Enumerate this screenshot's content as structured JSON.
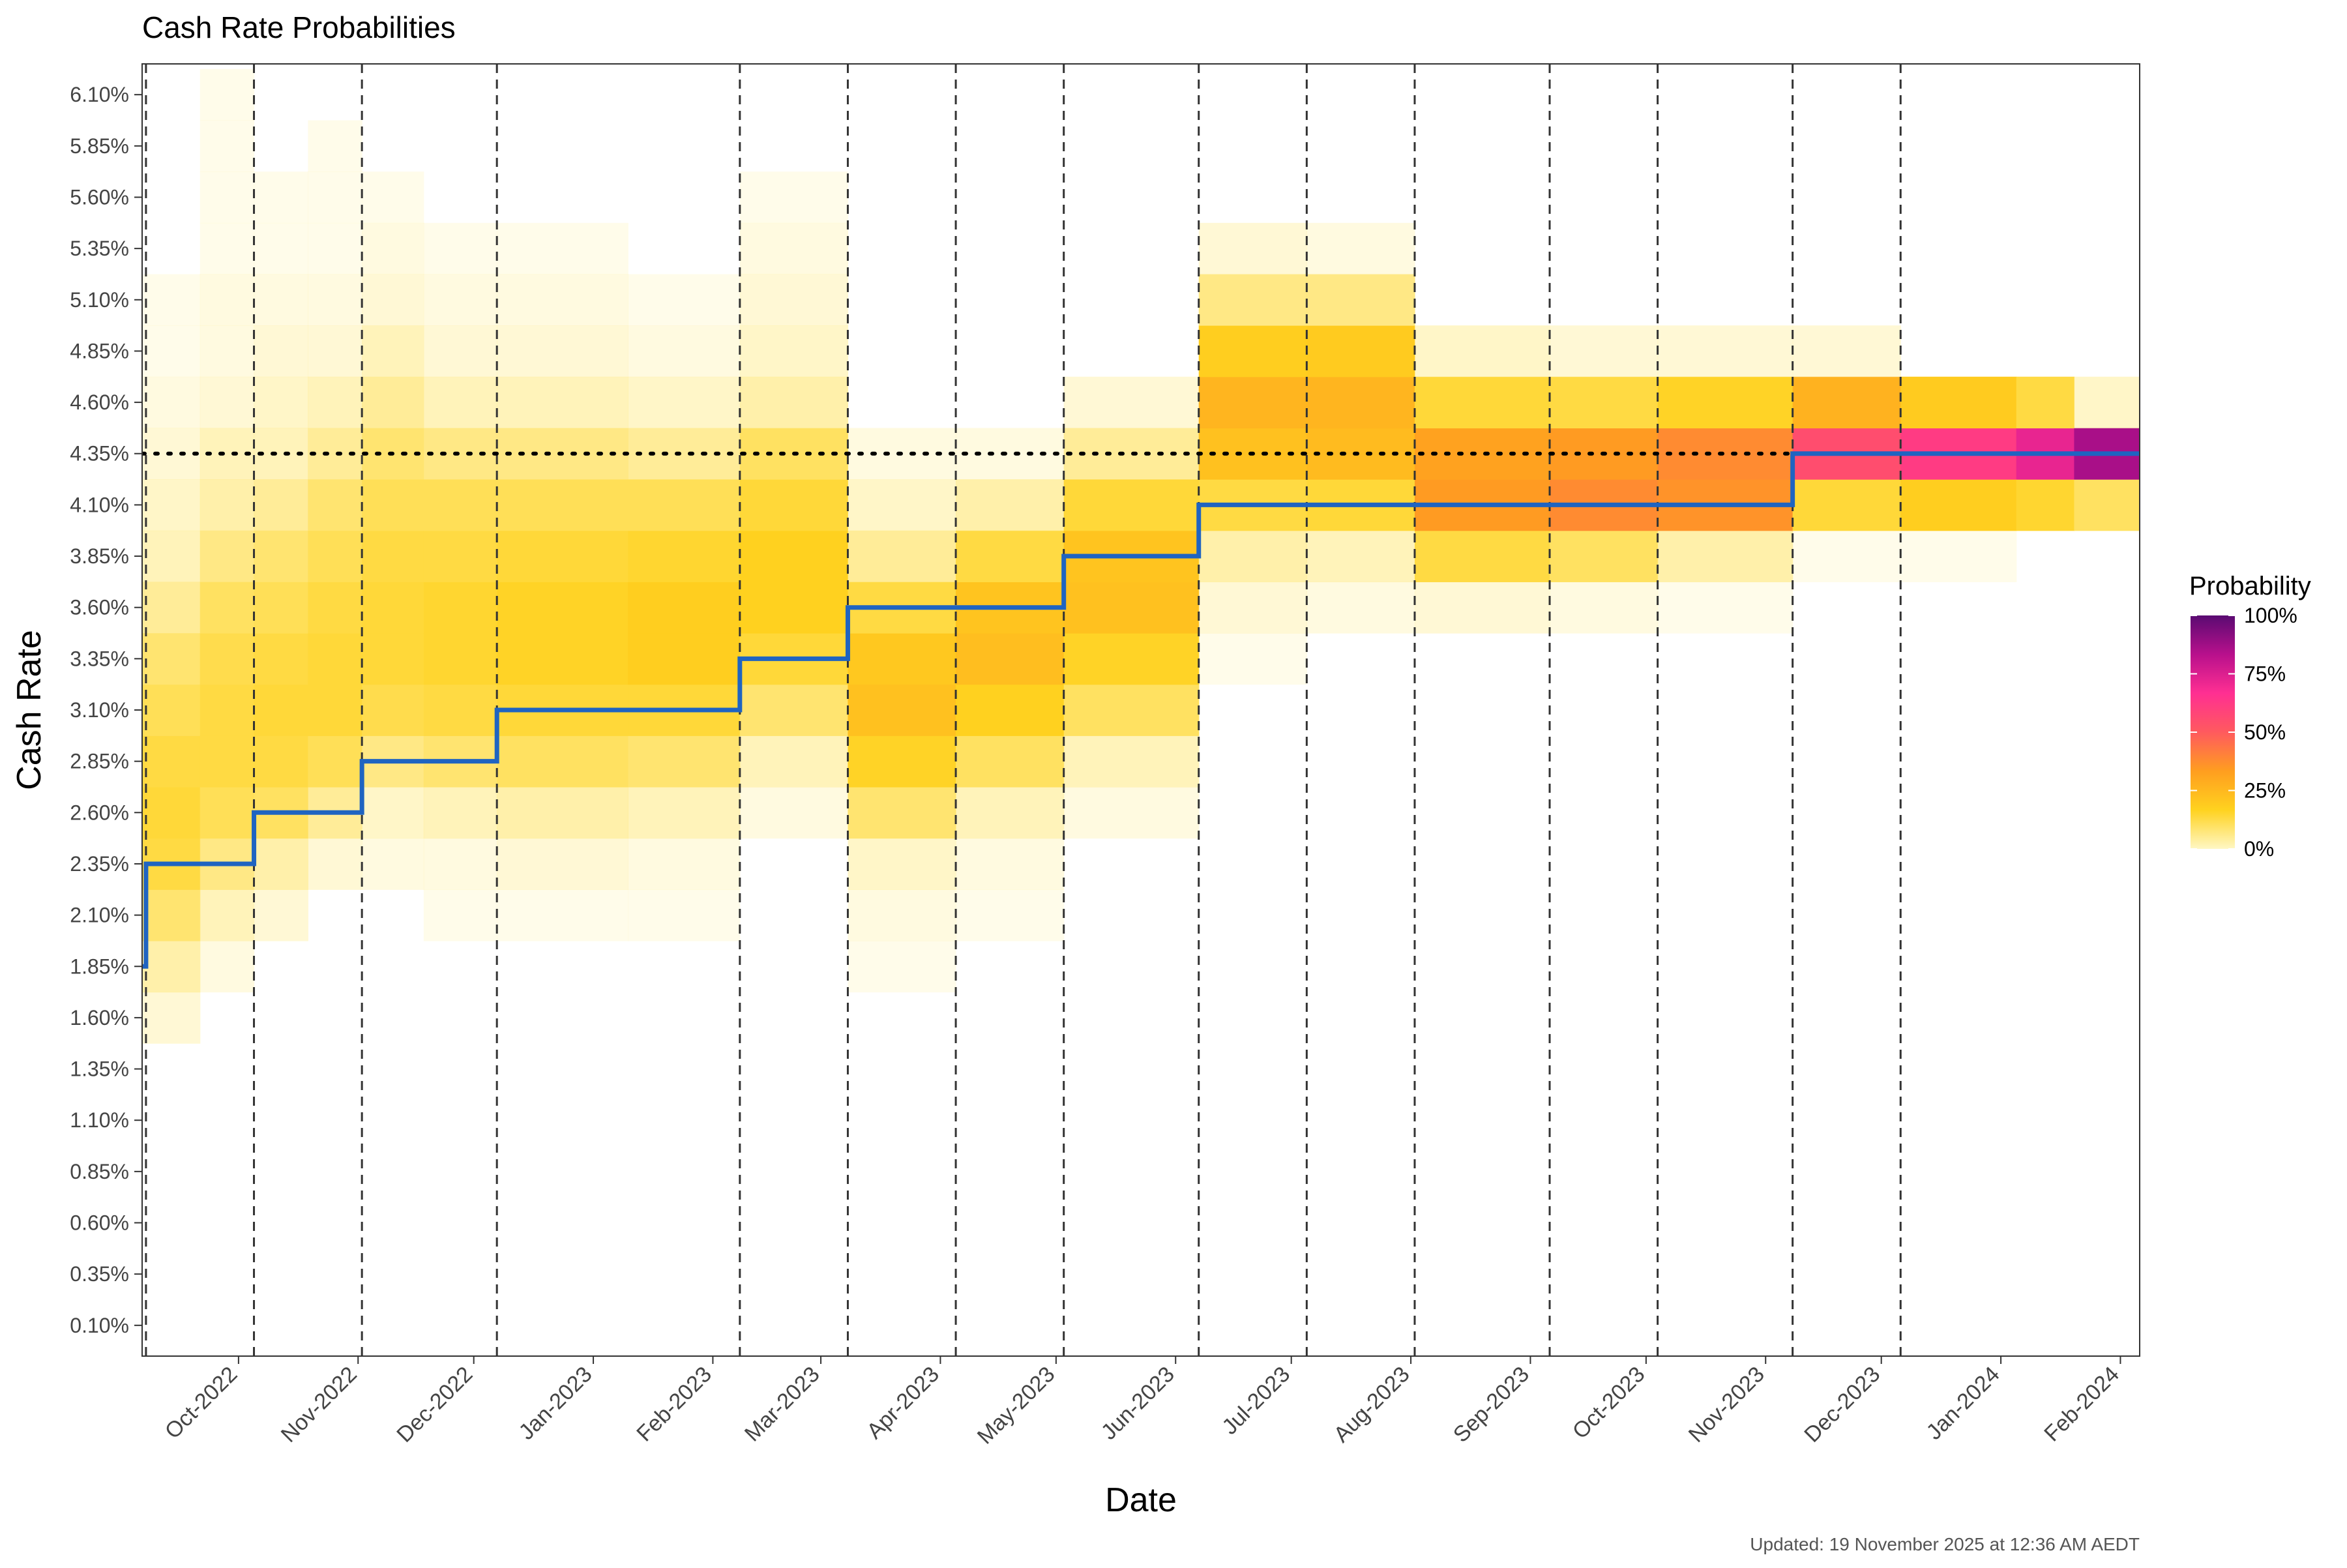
{
  "chart_data": {
    "type": "heatmap",
    "title": "Cash Rate Probabilities",
    "xlabel": "Date",
    "ylabel": "Cash Rate",
    "caption": "Updated: 19 November 2025 at 12:36 AM AEDT",
    "x_range": [
      "2022-09-06",
      "2024-02-06"
    ],
    "x_ticks": [
      {
        "date": "2022-10-01",
        "label": "Oct-2022"
      },
      {
        "date": "2022-11-01",
        "label": "Nov-2022"
      },
      {
        "date": "2022-12-01",
        "label": "Dec-2022"
      },
      {
        "date": "2023-01-01",
        "label": "Jan-2023"
      },
      {
        "date": "2023-02-01",
        "label": "Feb-2023"
      },
      {
        "date": "2023-03-01",
        "label": "Mar-2023"
      },
      {
        "date": "2023-04-01",
        "label": "Apr-2023"
      },
      {
        "date": "2023-05-01",
        "label": "May-2023"
      },
      {
        "date": "2023-06-01",
        "label": "Jun-2023"
      },
      {
        "date": "2023-07-01",
        "label": "Jul-2023"
      },
      {
        "date": "2023-08-01",
        "label": "Aug-2023"
      },
      {
        "date": "2023-09-01",
        "label": "Sep-2023"
      },
      {
        "date": "2023-10-01",
        "label": "Oct-2023"
      },
      {
        "date": "2023-11-01",
        "label": "Nov-2023"
      },
      {
        "date": "2023-12-01",
        "label": "Dec-2023"
      },
      {
        "date": "2024-01-01",
        "label": "Jan-2024"
      },
      {
        "date": "2024-02-01",
        "label": "Feb-2024"
      }
    ],
    "y_ticks": [
      "0.10%",
      "0.35%",
      "0.60%",
      "0.85%",
      "1.10%",
      "1.35%",
      "1.60%",
      "1.85%",
      "2.10%",
      "2.35%",
      "2.60%",
      "2.85%",
      "3.10%",
      "3.35%",
      "3.60%",
      "3.85%",
      "4.10%",
      "4.35%",
      "4.60%",
      "4.85%",
      "5.10%",
      "5.35%",
      "5.60%",
      "5.85%",
      "6.10%"
    ],
    "y_tick_values": [
      0.1,
      0.35,
      0.6,
      0.85,
      1.1,
      1.35,
      1.6,
      1.85,
      2.1,
      2.35,
      2.6,
      2.85,
      3.1,
      3.35,
      3.6,
      3.85,
      4.1,
      4.35,
      4.6,
      4.85,
      5.1,
      5.35,
      5.6,
      5.85,
      6.1
    ],
    "ylim": [
      -0.05,
      6.25
    ],
    "meeting_dates": [
      "2022-09-07",
      "2022-10-05",
      "2022-11-02",
      "2022-12-07",
      "2023-02-08",
      "2023-03-08",
      "2023-04-05",
      "2023-05-03",
      "2023-06-07",
      "2023-07-05",
      "2023-08-02",
      "2023-09-06",
      "2023-10-04",
      "2023-11-08",
      "2023-12-06"
    ],
    "reference_rate": 4.35,
    "cash_rate_steps": [
      {
        "from": "2022-09-06",
        "rate": 1.85
      },
      {
        "from": "2022-09-07",
        "rate": 2.35
      },
      {
        "from": "2022-10-05",
        "rate": 2.6
      },
      {
        "from": "2022-11-02",
        "rate": 2.85
      },
      {
        "from": "2022-12-07",
        "rate": 3.1
      },
      {
        "from": "2023-02-08",
        "rate": 3.35
      },
      {
        "from": "2023-03-08",
        "rate": 3.6
      },
      {
        "from": "2023-05-03",
        "rate": 3.85
      },
      {
        "from": "2023-06-07",
        "rate": 4.1
      },
      {
        "from": "2023-11-08",
        "rate": 4.35
      }
    ],
    "probability_periods": [
      {
        "from": "2022-09-06",
        "to": "2022-09-21",
        "probs": {
          "1.60": 3,
          "1.85": 6,
          "2.10": 9,
          "2.35": 13,
          "2.60": 14,
          "2.85": 13,
          "3.10": 11,
          "3.35": 9,
          "3.60": 7,
          "3.85": 5,
          "4.10": 4,
          "4.35": 3,
          "4.60": 2,
          "4.85": 1,
          "5.10": 1
        }
      },
      {
        "from": "2022-09-21",
        "to": "2022-10-05",
        "probs": {
          "1.85": 2,
          "2.10": 5,
          "2.35": 8,
          "2.60": 11,
          "2.85": 13,
          "3.10": 13,
          "3.35": 12,
          "3.60": 10,
          "3.85": 8,
          "4.10": 6,
          "4.35": 5,
          "4.60": 3,
          "4.85": 2,
          "5.10": 2,
          "5.35": 1,
          "5.60": 1,
          "5.85": 1,
          "6.10": 1
        }
      },
      {
        "from": "2022-10-05",
        "to": "2022-10-19",
        "probs": {
          "2.10": 3,
          "2.35": 6,
          "2.60": 10,
          "2.85": 13,
          "3.10": 14,
          "3.35": 13,
          "3.60": 11,
          "3.85": 9,
          "4.10": 7,
          "4.35": 5,
          "4.60": 4,
          "4.85": 3,
          "5.10": 2,
          "5.35": 1,
          "5.60": 1
        }
      },
      {
        "from": "2022-10-19",
        "to": "2022-11-02",
        "probs": {
          "2.35": 3,
          "2.60": 7,
          "2.85": 11,
          "3.10": 14,
          "3.35": 14,
          "3.60": 13,
          "3.85": 11,
          "4.10": 9,
          "4.35": 7,
          "4.60": 5,
          "4.85": 3,
          "5.10": 2,
          "5.35": 1,
          "5.60": 1,
          "5.85": 1
        }
      },
      {
        "from": "2022-11-02",
        "to": "2022-11-18",
        "probs": {
          "2.35": 2,
          "2.60": 4,
          "2.85": 8,
          "3.10": 12,
          "3.35": 14,
          "3.60": 14,
          "3.85": 13,
          "4.10": 11,
          "4.35": 9,
          "4.60": 7,
          "4.85": 5,
          "5.10": 3,
          "5.35": 2,
          "5.60": 1
        }
      },
      {
        "from": "2022-11-18",
        "to": "2022-12-07",
        "probs": {
          "2.10": 1,
          "2.35": 2,
          "2.60": 5,
          "2.85": 9,
          "3.10": 13,
          "3.35": 15,
          "3.60": 15,
          "3.85": 13,
          "4.10": 11,
          "4.35": 8,
          "4.60": 5,
          "4.85": 3,
          "5.10": 2,
          "5.35": 1
        }
      },
      {
        "from": "2022-12-07",
        "to": "2023-01-10",
        "probs": {
          "2.10": 1,
          "2.35": 3,
          "2.60": 6,
          "2.85": 10,
          "3.10": 14,
          "3.35": 16,
          "3.60": 16,
          "3.85": 14,
          "4.10": 11,
          "4.35": 8,
          "4.60": 5,
          "4.85": 3,
          "5.10": 2,
          "5.35": 1
        }
      },
      {
        "from": "2023-01-10",
        "to": "2023-02-08",
        "probs": {
          "2.10": 1,
          "2.35": 2,
          "2.60": 5,
          "2.85": 9,
          "3.10": 14,
          "3.35": 18,
          "3.60": 18,
          "3.85": 15,
          "4.10": 11,
          "4.35": 7,
          "4.60": 4,
          "4.85": 2,
          "5.10": 1
        }
      },
      {
        "from": "2023-02-08",
        "to": "2023-03-08",
        "probs": {
          "2.60": 2,
          "2.85": 5,
          "3.10": 9,
          "3.35": 14,
          "3.60": 17,
          "3.85": 17,
          "4.10": 14,
          "4.35": 10,
          "4.60": 6,
          "4.85": 4,
          "5.10": 3,
          "5.35": 2,
          "5.60": 1
        }
      },
      {
        "from": "2023-03-08",
        "to": "2023-04-05",
        "probs": {
          "1.85": 1,
          "2.10": 2,
          "2.35": 4,
          "2.60": 9,
          "2.85": 16,
          "3.10": 22,
          "3.35": 20,
          "3.60": 13,
          "3.85": 7,
          "4.10": 4,
          "4.35": 2
        }
      },
      {
        "from": "2023-04-05",
        "to": "2023-05-03",
        "probs": {
          "2.10": 1,
          "2.35": 2,
          "2.60": 5,
          "2.85": 10,
          "3.10": 17,
          "3.35": 23,
          "3.60": 21,
          "3.85": 13,
          "4.10": 6,
          "4.35": 2
        }
      },
      {
        "from": "2023-05-03",
        "to": "2023-06-07",
        "probs": {
          "2.60": 2,
          "2.85": 5,
          "3.10": 10,
          "3.35": 16,
          "3.60": 22,
          "3.85": 21,
          "4.10": 14,
          "4.35": 7,
          "4.60": 3
        }
      },
      {
        "from": "2023-06-07",
        "to": "2023-07-05",
        "probs": {
          "3.35": 1,
          "3.60": 3,
          "3.85": 6,
          "4.10": 13,
          "4.35": 22,
          "4.60": 26,
          "4.85": 18,
          "5.10": 8,
          "5.35": 3
        }
      },
      {
        "from": "2023-07-05",
        "to": "2023-08-02",
        "probs": {
          "3.60": 2,
          "3.85": 5,
          "4.10": 14,
          "4.35": 24,
          "4.60": 26,
          "4.85": 19,
          "5.10": 8,
          "5.35": 2
        }
      },
      {
        "from": "2023-08-02",
        "to": "2023-09-06",
        "probs": {
          "3.60": 3,
          "3.85": 13,
          "4.10": 34,
          "4.35": 32,
          "4.60": 14,
          "4.85": 4
        }
      },
      {
        "from": "2023-09-06",
        "to": "2023-10-04",
        "probs": {
          "3.60": 2,
          "3.85": 10,
          "4.10": 38,
          "4.35": 34,
          "4.60": 13,
          "4.85": 3
        }
      },
      {
        "from": "2023-10-04",
        "to": "2023-11-08",
        "probs": {
          "3.60": 1,
          "3.85": 6,
          "4.10": 36,
          "4.35": 38,
          "4.60": 16,
          "4.85": 3
        }
      },
      {
        "from": "2023-11-08",
        "to": "2023-12-06",
        "probs": {
          "3.85": 1,
          "4.10": 14,
          "4.35": 55,
          "4.60": 27,
          "4.85": 3
        }
      },
      {
        "from": "2023-12-06",
        "to": "2024-01-05",
        "probs": {
          "3.85": 1,
          "4.10": 18,
          "4.35": 62,
          "4.60": 19
        }
      },
      {
        "from": "2024-01-05",
        "to": "2024-01-20",
        "probs": {
          "4.10": 15,
          "4.35": 72,
          "4.60": 13
        }
      },
      {
        "from": "2024-01-20",
        "to": "2024-02-06",
        "probs": {
          "4.10": 10,
          "4.35": 86,
          "4.60": 4
        }
      }
    ],
    "legend": {
      "title": "Probability",
      "labels": [
        "0%",
        "25%",
        "50%",
        "75%",
        "100%"
      ],
      "values": [
        0,
        25,
        50,
        75,
        100
      ],
      "position": "right"
    },
    "colors": {
      "gradient_stops": [
        "#fff7c4",
        "#ffd21f",
        "#ff9e1f",
        "#ff5a5e",
        "#ff2f92",
        "#b8108c",
        "#5a0b72"
      ],
      "step_line": "#1f64c1",
      "reference_line": "#000000",
      "meeting_line": "#333333"
    }
  }
}
